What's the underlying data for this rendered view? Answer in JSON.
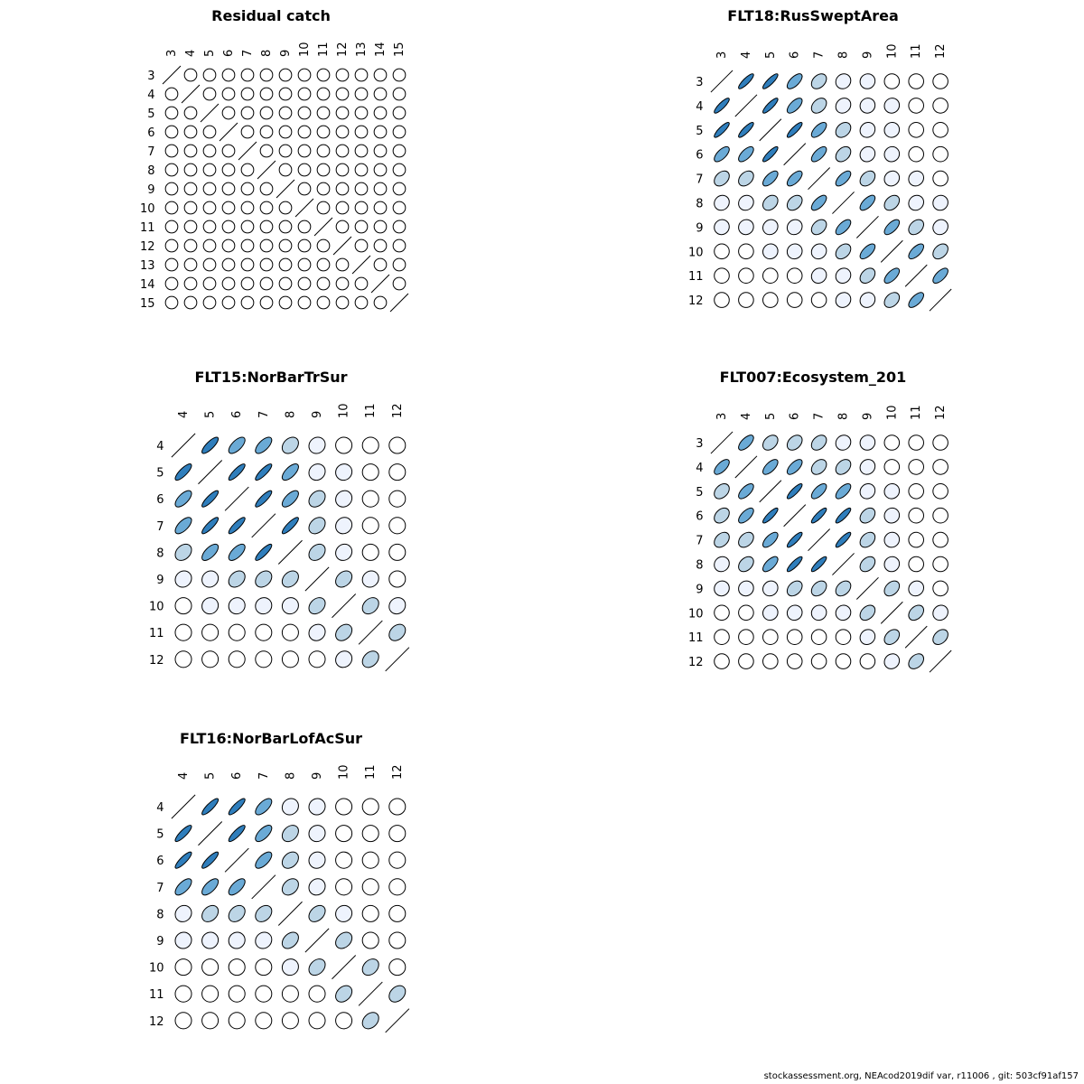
{
  "footer": "stockassessment.org, NEAcod2019dif  var, r11006 , git: 503cf91af157",
  "colors": {
    "outline": "#000000",
    "palette": [
      "#ffffff",
      "#eef3fd",
      "#bcd5e6",
      "#6aaad6",
      "#2f7ebc"
    ]
  },
  "chart_data": [
    {
      "type": "heatmap",
      "subtype": "correlation-ellipse",
      "title": "Residual catch",
      "labels": [
        "3",
        "4",
        "5",
        "6",
        "7",
        "8",
        "9",
        "10",
        "11",
        "12",
        "13",
        "14",
        "15"
      ],
      "correlations": [
        [
          1,
          0,
          0,
          0,
          0,
          0,
          0,
          0,
          0,
          0,
          0,
          0,
          0
        ],
        [
          0,
          1,
          0,
          0,
          0,
          0,
          0,
          0,
          0,
          0,
          0,
          0,
          0
        ],
        [
          0,
          0,
          1,
          0,
          0,
          0,
          0,
          0,
          0,
          0,
          0,
          0,
          0
        ],
        [
          0,
          0,
          0,
          1,
          0,
          0,
          0,
          0,
          0,
          0,
          0,
          0,
          0
        ],
        [
          0,
          0,
          0,
          0,
          1,
          0,
          0,
          0,
          0,
          0,
          0,
          0,
          0
        ],
        [
          0,
          0,
          0,
          0,
          0,
          1,
          0,
          0,
          0,
          0,
          0,
          0,
          0
        ],
        [
          0,
          0,
          0,
          0,
          0,
          0,
          1,
          0,
          0,
          0,
          0,
          0,
          0
        ],
        [
          0,
          0,
          0,
          0,
          0,
          0,
          0,
          1,
          0,
          0,
          0,
          0,
          0
        ],
        [
          0,
          0,
          0,
          0,
          0,
          0,
          0,
          0,
          1,
          0,
          0,
          0,
          0
        ],
        [
          0,
          0,
          0,
          0,
          0,
          0,
          0,
          0,
          0,
          1,
          0,
          0,
          0
        ],
        [
          0,
          0,
          0,
          0,
          0,
          0,
          0,
          0,
          0,
          0,
          1,
          0,
          0
        ],
        [
          0,
          0,
          0,
          0,
          0,
          0,
          0,
          0,
          0,
          0,
          0,
          1,
          0
        ],
        [
          0,
          0,
          0,
          0,
          0,
          0,
          0,
          0,
          0,
          0,
          0,
          0,
          1
        ]
      ]
    },
    {
      "type": "heatmap",
      "subtype": "correlation-ellipse",
      "title": "FLT18:RusSweptArea",
      "labels": [
        "3",
        "4",
        "5",
        "6",
        "7",
        "8",
        "9",
        "10",
        "11",
        "12"
      ],
      "correlations": [
        [
          1,
          0.85,
          0.85,
          0.65,
          0.35,
          0.1,
          0.05,
          0,
          0,
          0
        ],
        [
          0.85,
          1,
          0.85,
          0.65,
          0.35,
          0.15,
          0.05,
          0.05,
          0,
          0
        ],
        [
          0.85,
          0.85,
          1,
          0.85,
          0.65,
          0.3,
          0.1,
          0.05,
          0,
          0
        ],
        [
          0.65,
          0.65,
          0.85,
          1,
          0.65,
          0.35,
          0.1,
          0.05,
          0,
          0
        ],
        [
          0.35,
          0.35,
          0.65,
          0.65,
          1,
          0.65,
          0.35,
          0.1,
          0.1,
          0
        ],
        [
          0.1,
          0.1,
          0.3,
          0.35,
          0.65,
          1,
          0.65,
          0.35,
          0.1,
          0.05
        ],
        [
          0.05,
          0.05,
          0.1,
          0.1,
          0.35,
          0.65,
          1,
          0.65,
          0.35,
          0.1
        ],
        [
          0,
          0,
          0.05,
          0.05,
          0.1,
          0.35,
          0.65,
          1,
          0.65,
          0.35
        ],
        [
          0,
          0,
          0,
          0,
          0.1,
          0.1,
          0.35,
          0.65,
          1,
          0.65
        ],
        [
          0,
          0,
          0,
          0,
          0,
          0.1,
          0.1,
          0.35,
          0.65,
          1
        ]
      ]
    },
    {
      "type": "heatmap",
      "subtype": "correlation-ellipse",
      "title": "FLT15:NorBarTrSur",
      "labels": [
        "4",
        "5",
        "6",
        "7",
        "8",
        "9",
        "10",
        "11",
        "12"
      ],
      "correlations": [
        [
          1,
          0.8,
          0.65,
          0.65,
          0.3,
          0.1,
          0,
          0,
          0
        ],
        [
          0.8,
          1,
          0.85,
          0.85,
          0.65,
          0.1,
          0.05,
          0,
          0
        ],
        [
          0.65,
          0.85,
          1,
          0.85,
          0.65,
          0.3,
          0.1,
          0,
          0
        ],
        [
          0.65,
          0.85,
          0.85,
          1,
          0.85,
          0.3,
          0.1,
          0,
          0
        ],
        [
          0.3,
          0.65,
          0.65,
          0.85,
          1,
          0.3,
          0.1,
          0,
          0
        ],
        [
          0.1,
          0.1,
          0.3,
          0.3,
          0.3,
          1,
          0.3,
          0.1,
          0
        ],
        [
          0,
          0.05,
          0.05,
          0.05,
          0.05,
          0.3,
          1,
          0.3,
          0.1
        ],
        [
          0,
          0,
          0,
          0,
          0,
          0.1,
          0.3,
          1,
          0.3
        ],
        [
          0,
          0,
          0,
          0,
          0,
          0,
          0.1,
          0.3,
          1
        ]
      ]
    },
    {
      "type": "heatmap",
      "subtype": "correlation-ellipse",
      "title": "FLT007:Ecosystem_201",
      "labels": [
        "3",
        "4",
        "5",
        "6",
        "7",
        "8",
        "9",
        "10",
        "11",
        "12"
      ],
      "correlations": [
        [
          1,
          0.65,
          0.35,
          0.35,
          0.35,
          0.1,
          0.05,
          0,
          0,
          0
        ],
        [
          0.65,
          1,
          0.65,
          0.65,
          0.35,
          0.35,
          0.1,
          0,
          0,
          0
        ],
        [
          0.35,
          0.65,
          1,
          0.85,
          0.65,
          0.65,
          0.1,
          0.05,
          0,
          0
        ],
        [
          0.35,
          0.65,
          0.85,
          1,
          0.85,
          0.85,
          0.35,
          0.05,
          0,
          0
        ],
        [
          0.35,
          0.35,
          0.65,
          0.85,
          1,
          0.85,
          0.35,
          0.05,
          0,
          0
        ],
        [
          0.1,
          0.35,
          0.65,
          0.85,
          0.85,
          1,
          0.35,
          0.05,
          0,
          0
        ],
        [
          0.05,
          0.05,
          0.1,
          0.35,
          0.35,
          0.35,
          1,
          0.35,
          0.1,
          0
        ],
        [
          0,
          0,
          0.05,
          0.05,
          0.05,
          0.05,
          0.35,
          1,
          0.35,
          0.1
        ],
        [
          0,
          0,
          0,
          0,
          0,
          0,
          0.1,
          0.35,
          1,
          0.35
        ],
        [
          0,
          0,
          0,
          0,
          0,
          0,
          0,
          0.1,
          0.35,
          1
        ]
      ]
    },
    {
      "type": "heatmap",
      "subtype": "correlation-ellipse",
      "title": "FLT16:NorBarLofAcSur",
      "labels": [
        "4",
        "5",
        "6",
        "7",
        "8",
        "9",
        "10",
        "11",
        "12"
      ],
      "correlations": [
        [
          1,
          0.85,
          0.85,
          0.65,
          0.1,
          0.05,
          0,
          0,
          0
        ],
        [
          0.85,
          1,
          0.85,
          0.65,
          0.3,
          0.05,
          0,
          0,
          0
        ],
        [
          0.85,
          0.85,
          1,
          0.65,
          0.3,
          0.05,
          0,
          0,
          0
        ],
        [
          0.65,
          0.65,
          0.65,
          1,
          0.3,
          0.1,
          0,
          0,
          0
        ],
        [
          0.1,
          0.3,
          0.3,
          0.3,
          1,
          0.35,
          0.05,
          0,
          0
        ],
        [
          0.05,
          0.05,
          0.05,
          0.1,
          0.35,
          1,
          0.3,
          0,
          0
        ],
        [
          0,
          0,
          0,
          0,
          0.05,
          0.3,
          1,
          0.3,
          0
        ],
        [
          0,
          0,
          0,
          0,
          0,
          0,
          0.3,
          1,
          0.3
        ],
        [
          0,
          0,
          0,
          0,
          0,
          0,
          0,
          0.3,
          1
        ]
      ]
    }
  ]
}
